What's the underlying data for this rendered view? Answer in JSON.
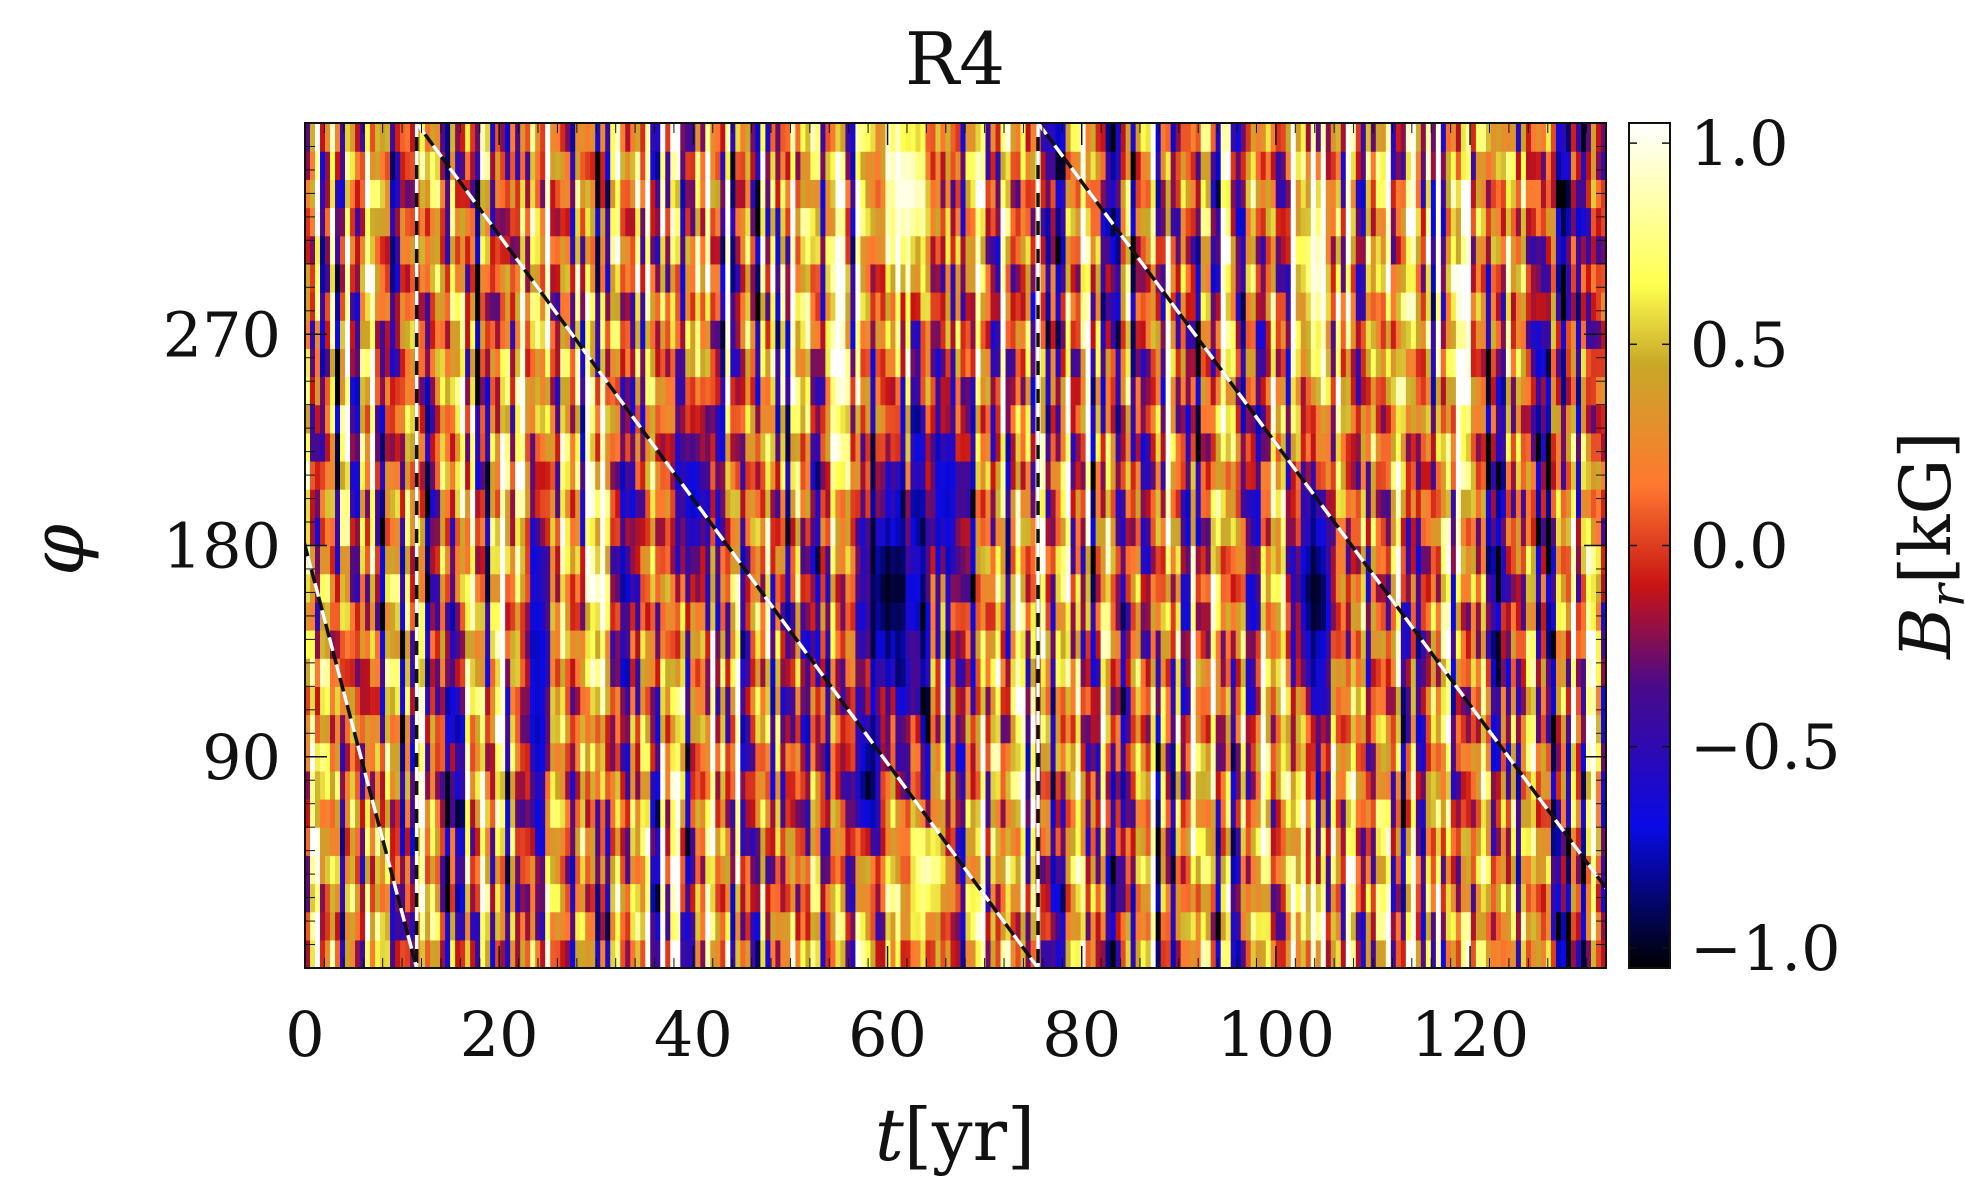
{
  "chart_data": {
    "type": "heatmap",
    "title": "R4",
    "xlabel": "t[yr]",
    "ylabel": "φ",
    "xlim": [
      0,
      134
    ],
    "ylim": [
      0,
      360
    ],
    "x_ticks": [
      0,
      20,
      40,
      60,
      80,
      100,
      120
    ],
    "y_ticks": [
      90,
      180,
      270
    ],
    "colorbar": {
      "label": "Br[kG]",
      "label_main": "B",
      "label_sub": "r",
      "label_unit": "[kG]",
      "range": [
        -1.05,
        1.05
      ],
      "ticks": [
        1.0,
        0.5,
        0.0,
        -0.5,
        -1.0
      ],
      "tick_labels": [
        "1.0",
        "0.5",
        "0.0",
        "−0.5",
        "−1.0"
      ],
      "colormap": [
        {
          "v": -1.05,
          "color": "#000000"
        },
        {
          "v": -0.7,
          "color": "#0a0ae6"
        },
        {
          "v": -0.35,
          "color": "#4a0a8a"
        },
        {
          "v": -0.1,
          "color": "#c81414"
        },
        {
          "v": 0.15,
          "color": "#ff7830"
        },
        {
          "v": 0.45,
          "color": "#c8a828"
        },
        {
          "v": 0.65,
          "color": "#ffff50"
        },
        {
          "v": 1.05,
          "color": "#ffffff"
        }
      ]
    },
    "vertical_markers": [
      11.5,
      75.5
    ],
    "diagonal_lines": [
      {
        "t_start": -11.5,
        "phi_start": 360,
        "t_end": 11.5,
        "phi_end": 0
      },
      {
        "t_start": 11.5,
        "phi_start": 360,
        "t_end": 75.5,
        "phi_end": 0
      },
      {
        "t_start": 75.5,
        "phi_start": 360,
        "t_end": 134,
        "phi_end": 34
      }
    ],
    "dark_features": [
      {
        "t": 60,
        "phi": 160,
        "width_yr": 3.5,
        "height_deg": 120,
        "value": -1.0
      },
      {
        "t": 58,
        "phi": 80,
        "width_yr": 1.5,
        "height_deg": 60,
        "value": -1.0
      },
      {
        "t": 104,
        "phi": 160,
        "width_yr": 2.5,
        "height_deg": 110,
        "value": -1.0
      },
      {
        "t": 66,
        "phi": 200,
        "width_yr": 2,
        "height_deg": 80,
        "value": -0.75
      },
      {
        "t": 40,
        "phi": 200,
        "width_yr": 2,
        "height_deg": 90,
        "value": -0.75
      },
      {
        "t": 24,
        "phi": 130,
        "width_yr": 1.5,
        "height_deg": 140,
        "value": -0.75
      }
    ],
    "bright_features": [
      {
        "t": 62,
        "phi": 330,
        "width_yr": 3,
        "height_deg": 80,
        "value": 1.0
      },
      {
        "t": 104,
        "phi": 300,
        "width_yr": 1.5,
        "height_deg": 110,
        "value": 1.0
      },
      {
        "t": 104,
        "phi": 20,
        "width_yr": 1,
        "height_deg": 50,
        "value": 1.0
      },
      {
        "t": 64,
        "phi": 40,
        "width_yr": 2,
        "height_deg": 60,
        "value": 0.9
      }
    ]
  }
}
